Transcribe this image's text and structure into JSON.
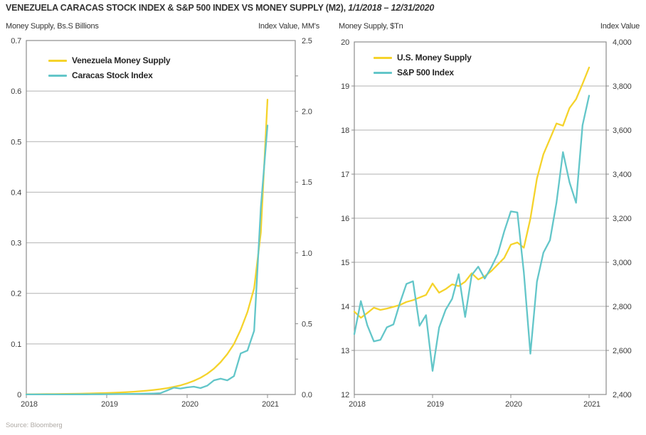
{
  "page": {
    "title_main": "VENEZUELA CARACAS STOCK INDEX & S&P 500 INDEX VS MONEY SUPPLY (M2), ",
    "title_dates": "1/1/2018 – 12/31/2020",
    "source": "Source: Bloomberg"
  },
  "colors": {
    "yellow": "#F5D32B",
    "teal": "#63C6C9",
    "grid": "#b2b2b2",
    "border": "#8c8c8c",
    "tick_text": "#3c3c3c"
  },
  "chart_data": [
    {
      "type": "line",
      "title": "Venezuela Caracas Stock Index vs Money Supply",
      "frequency": "monthly",
      "left_axis_label": "Money Supply, Bs.S Billions",
      "right_axis_label": "Index Value, MM's",
      "x_ticks": {
        "labels": [
          "2018",
          "2019",
          "2020",
          "2021"
        ],
        "month_positions": [
          0,
          12,
          24,
          36
        ]
      },
      "left_axis": {
        "min": 0,
        "max": 0.7,
        "tick_values": [
          0,
          0.1,
          0.2,
          0.3,
          0.4,
          0.5,
          0.6,
          0.7
        ],
        "tick_labels": [
          "0",
          "0.1",
          "0.2",
          "0.3",
          "0.4",
          "0.5",
          "0.6",
          "0.7"
        ]
      },
      "right_axis": {
        "min": 0,
        "max": 2.5,
        "tick_values": [
          0,
          0.5,
          1.0,
          1.5,
          2.0,
          2.5
        ],
        "tick_labels": [
          "0.0",
          "0.5",
          "1.0",
          "1.5",
          "2.0",
          "2.5"
        ]
      },
      "series": [
        {
          "name": "Venezuela Money Supply",
          "color_key": "yellow",
          "axis": "left",
          "values": [
            0.0005,
            0.0006,
            0.0007,
            0.0008,
            0.0009,
            0.001,
            0.0012,
            0.0014,
            0.0016,
            0.0019,
            0.0022,
            0.0026,
            0.003,
            0.0035,
            0.004,
            0.0047,
            0.0055,
            0.0065,
            0.0076,
            0.009,
            0.0105,
            0.0125,
            0.015,
            0.018,
            0.022,
            0.027,
            0.033,
            0.041,
            0.051,
            0.064,
            0.08,
            0.1,
            0.128,
            0.163,
            0.21,
            0.32,
            0.583
          ]
        },
        {
          "name": "Caracas Stock Index",
          "color_key": "teal",
          "axis": "right",
          "values": [
            0.0003,
            0.0003,
            0.0004,
            0.0004,
            0.0005,
            0.0006,
            0.0007,
            0.0008,
            0.0009,
            0.0011,
            0.0013,
            0.0016,
            0.002,
            0.0024,
            0.0028,
            0.0034,
            0.004,
            0.0048,
            0.0058,
            0.007,
            0.009,
            0.028,
            0.048,
            0.042,
            0.05,
            0.055,
            0.045,
            0.062,
            0.1,
            0.112,
            0.1,
            0.13,
            0.29,
            0.31,
            0.45,
            1.32,
            1.9
          ]
        }
      ]
    },
    {
      "type": "line",
      "title": "S&P 500 Index vs U.S. Money Supply",
      "frequency": "monthly",
      "left_axis_label": "Money Supply, $Tn",
      "right_axis_label": "Index Value",
      "x_ticks": {
        "labels": [
          "2018",
          "2019",
          "2020",
          "2021"
        ],
        "month_positions": [
          0,
          12,
          24,
          36
        ]
      },
      "left_axis": {
        "min": 12,
        "max": 20,
        "tick_values": [
          12,
          13,
          14,
          15,
          16,
          17,
          18,
          19,
          20
        ],
        "tick_labels": [
          "12",
          "13",
          "14",
          "15",
          "16",
          "17",
          "18",
          "19",
          "20"
        ]
      },
      "right_axis": {
        "min": 2400,
        "max": 4000,
        "tick_values": [
          2400,
          2600,
          2800,
          3000,
          3200,
          3400,
          3600,
          3800,
          4000
        ],
        "tick_labels": [
          "2,400",
          "2,600",
          "2,800",
          "3,000",
          "3,200",
          "3,400",
          "3,600",
          "3,800",
          "4,000"
        ]
      },
      "series": [
        {
          "name": "U.S. Money Supply",
          "color_key": "yellow",
          "axis": "left",
          "values": [
            13.88,
            13.74,
            13.85,
            13.97,
            13.92,
            13.95,
            13.99,
            14.03,
            14.1,
            14.14,
            14.2,
            14.26,
            14.52,
            14.31,
            14.39,
            14.5,
            14.46,
            14.56,
            14.75,
            14.61,
            14.68,
            14.8,
            14.95,
            15.1,
            15.4,
            15.45,
            15.33,
            15.99,
            16.9,
            17.45,
            17.8,
            18.15,
            18.1,
            18.5,
            18.7,
            19.05,
            19.42
          ]
        },
        {
          "name": "S&P 500 Index",
          "color_key": "teal",
          "axis": "right",
          "values": [
            2674,
            2824,
            2714,
            2641,
            2648,
            2705,
            2718,
            2816,
            2902,
            2914,
            2712,
            2760,
            2507,
            2704,
            2784,
            2834,
            2946,
            2752,
            2942,
            2980,
            2926,
            2977,
            3038,
            3141,
            3231,
            3226,
            2954,
            2585,
            2912,
            3044,
            3100,
            3271,
            3500,
            3363,
            3270,
            3622,
            3756
          ]
        }
      ]
    }
  ]
}
